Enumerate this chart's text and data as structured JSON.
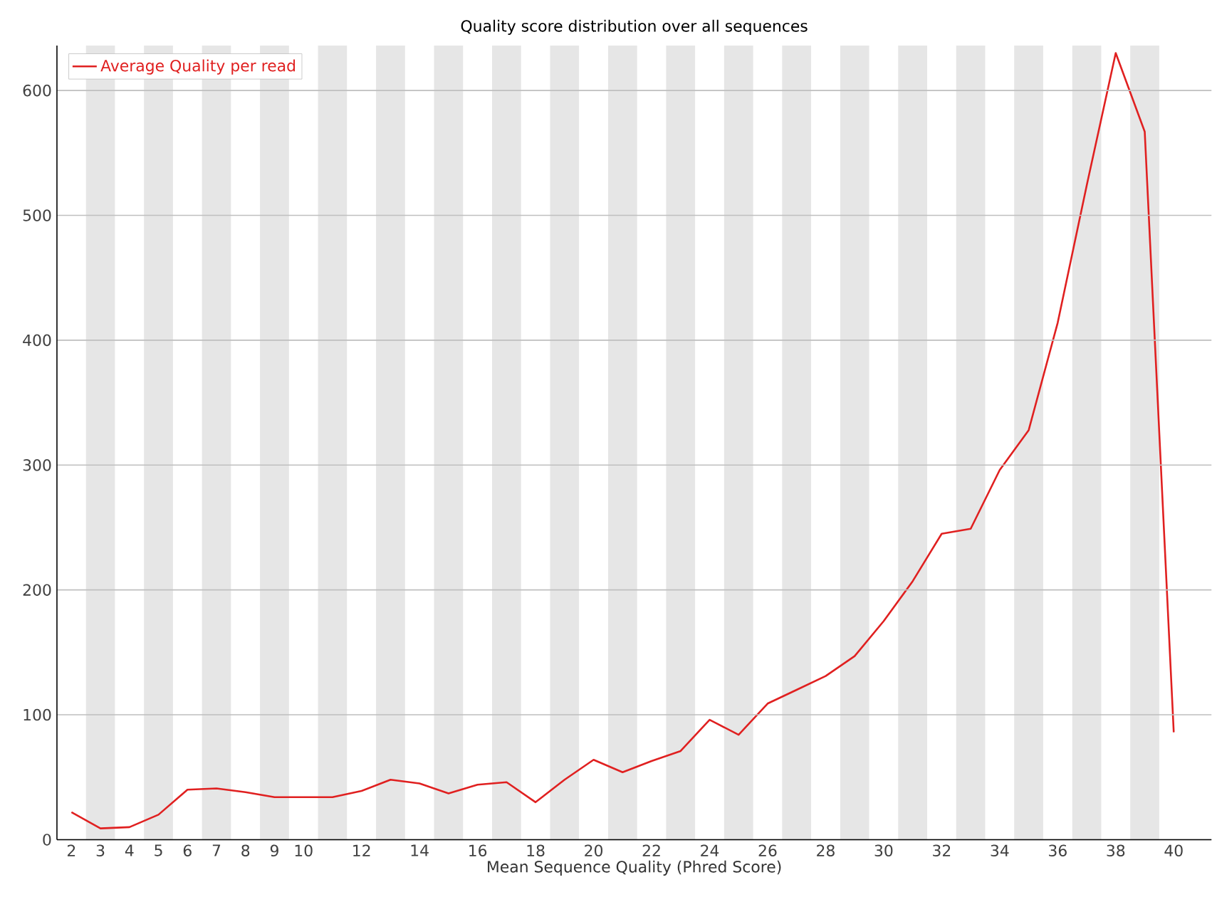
{
  "chart_data": {
    "type": "line",
    "title": "Quality score distribution over all sequences",
    "xlabel": "Mean Sequence Quality (Phred Score)",
    "x": [
      2,
      3,
      4,
      5,
      6,
      7,
      8,
      9,
      10,
      11,
      12,
      13,
      14,
      15,
      16,
      17,
      18,
      19,
      20,
      21,
      22,
      23,
      24,
      25,
      26,
      27,
      28,
      29,
      30,
      31,
      32,
      33,
      34,
      35,
      36,
      37,
      38,
      39,
      40
    ],
    "series": [
      {
        "name": "Average Quality per read",
        "color": "#e02020",
        "values": [
          22,
          9,
          10,
          20,
          40,
          41,
          38,
          34,
          34,
          34,
          39,
          48,
          45,
          37,
          44,
          46,
          30,
          48,
          64,
          54,
          63,
          71,
          96,
          84,
          109,
          120,
          131,
          147,
          175,
          207,
          245,
          249,
          296,
          328,
          414,
          524,
          630,
          567,
          86
        ]
      }
    ],
    "xlim": [
      1.5,
      41.3
    ],
    "ylim": [
      0,
      636
    ],
    "xticks": [
      2,
      3,
      4,
      5,
      6,
      7,
      8,
      9,
      10,
      12,
      14,
      16,
      18,
      20,
      22,
      24,
      26,
      28,
      30,
      32,
      34,
      36,
      38,
      40
    ],
    "yticks": [
      0,
      100,
      200,
      300,
      400,
      500,
      600
    ],
    "grid": "y",
    "legend": "top left",
    "marker": "none",
    "line_style": "solid",
    "bands": [
      {
        "axis": "x",
        "from": 2.5,
        "to": 3.5,
        "color": "#e6e6e6"
      },
      {
        "axis": "x",
        "from": 4.5,
        "to": 5.5,
        "color": "#e6e6e6"
      },
      {
        "axis": "x",
        "from": 6.5,
        "to": 7.5,
        "color": "#e6e6e6"
      },
      {
        "axis": "x",
        "from": 8.5,
        "to": 9.5,
        "color": "#e6e6e6"
      },
      {
        "axis": "x",
        "from": 10.5,
        "to": 11.5,
        "color": "#e6e6e6"
      },
      {
        "axis": "x",
        "from": 12.5,
        "to": 13.5,
        "color": "#e6e6e6"
      },
      {
        "axis": "x",
        "from": 14.5,
        "to": 15.5,
        "color": "#e6e6e6"
      },
      {
        "axis": "x",
        "from": 16.5,
        "to": 17.5,
        "color": "#e6e6e6"
      },
      {
        "axis": "x",
        "from": 18.5,
        "to": 19.5,
        "color": "#e6e6e6"
      },
      {
        "axis": "x",
        "from": 20.5,
        "to": 21.5,
        "color": "#e6e6e6"
      },
      {
        "axis": "x",
        "from": 22.5,
        "to": 23.5,
        "color": "#e6e6e6"
      },
      {
        "axis": "x",
        "from": 24.5,
        "to": 25.5,
        "color": "#e6e6e6"
      },
      {
        "axis": "x",
        "from": 26.5,
        "to": 27.5,
        "color": "#e6e6e6"
      },
      {
        "axis": "x",
        "from": 28.5,
        "to": 29.5,
        "color": "#e6e6e6"
      },
      {
        "axis": "x",
        "from": 30.5,
        "to": 31.5,
        "color": "#e6e6e6"
      },
      {
        "axis": "x",
        "from": 32.5,
        "to": 33.5,
        "color": "#e6e6e6"
      },
      {
        "axis": "x",
        "from": 34.5,
        "to": 35.5,
        "color": "#e6e6e6"
      },
      {
        "axis": "x",
        "from": 36.5,
        "to": 37.5,
        "color": "#e6e6e6"
      },
      {
        "axis": "x",
        "from": 38.5,
        "to": 39.5,
        "color": "#e6e6e6"
      }
    ]
  }
}
